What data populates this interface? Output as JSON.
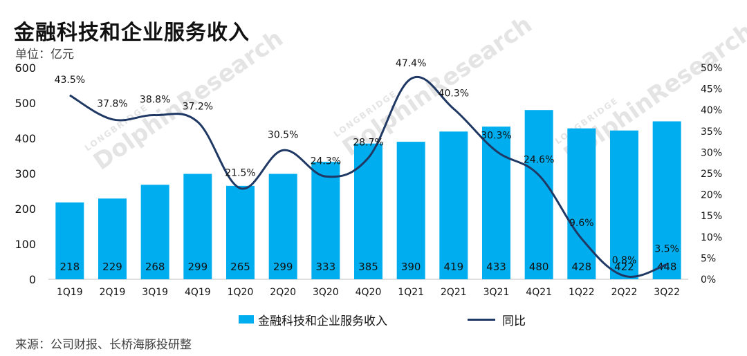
{
  "title": "金融科技和企业服务收入",
  "unit_label": "单位：亿元",
  "source": "来源：公司财报、长桥海豚投研整",
  "watermark": {
    "brand": "DolphinResearch",
    "brand_small": "LONGBRIDGE"
  },
  "colors": {
    "bar": "#00AEEF",
    "line": "#1F3864",
    "text": "#111111"
  },
  "chart_data": {
    "type": "bar",
    "categories": [
      "1Q19",
      "2Q19",
      "3Q19",
      "4Q19",
      "1Q20",
      "2Q20",
      "3Q20",
      "4Q20",
      "1Q21",
      "2Q21",
      "3Q21",
      "4Q21",
      "1Q22",
      "2Q22",
      "3Q22"
    ],
    "series": [
      {
        "name": "金融科技和企业服务收入",
        "type": "bar",
        "axis": "left",
        "values": [
          218,
          229,
          268,
          299,
          265,
          299,
          333,
          385,
          390,
          419,
          433,
          480,
          428,
          422,
          448
        ]
      },
      {
        "name": "同比",
        "type": "line",
        "axis": "right",
        "values": [
          43.5,
          37.8,
          38.8,
          37.2,
          21.5,
          30.5,
          24.3,
          28.7,
          47.4,
          40.3,
          30.3,
          24.6,
          9.6,
          0.8,
          3.5
        ],
        "labels": [
          "43.5%",
          "37.8%",
          "38.8%",
          "37.2%",
          "21.5%",
          "30.5%",
          "24.3%",
          "28.7%",
          "47.4%",
          "40.3%",
          "30.3%",
          "24.6%",
          "9.6%",
          "0.8%",
          "3.5%"
        ]
      }
    ],
    "y_left": {
      "min": 0,
      "max": 600,
      "ticks": [
        "0",
        "100",
        "200",
        "300",
        "400",
        "500",
        "600"
      ]
    },
    "y_right": {
      "min": 0,
      "max": 50,
      "ticks": [
        "0%",
        "5%",
        "10%",
        "15%",
        "20%",
        "25%",
        "30%",
        "35%",
        "40%",
        "45%",
        "50%"
      ]
    },
    "legend": {
      "placement": "bottom",
      "bar_label": "金融科技和企业服务收入",
      "line_label": "同比"
    },
    "grid": false
  }
}
